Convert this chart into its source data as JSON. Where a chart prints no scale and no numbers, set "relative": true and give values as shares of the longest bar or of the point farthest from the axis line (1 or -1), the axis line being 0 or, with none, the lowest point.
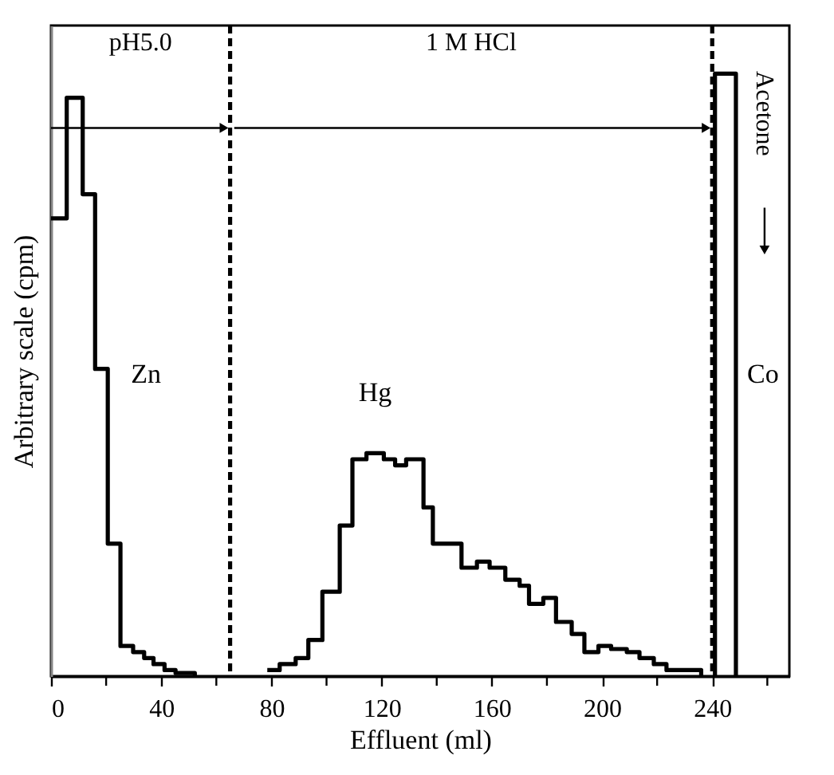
{
  "chart_data": {
    "type": "step",
    "relative": true,
    "xlabel": "Effluent (ml)",
    "ylabel": "Arbitrary scale (cpm)",
    "xlim": [
      0,
      268
    ],
    "xticks": [
      0,
      {
        "value": 20,
        "label": null
      },
      40,
      {
        "value": 60,
        "label": null
      },
      80,
      {
        "value": 100,
        "label": null
      },
      120,
      {
        "value": 140,
        "label": null
      },
      160,
      {
        "value": 180,
        "label": null
      },
      200,
      {
        "value": 220,
        "label": null
      },
      240,
      {
        "value": 260,
        "label": null
      }
    ],
    "series": [
      {
        "name": "Zn",
        "color": "#000000",
        "x": [
          0,
          5.7,
          11.5,
          16,
          20.6,
          25.2,
          29.8,
          33.8,
          37.2,
          41.2,
          45.2,
          52.2
        ],
        "values": [
          0.76,
          0.96,
          0.8,
          0.51,
          0.22,
          0.05,
          0.04,
          0.03,
          0.02,
          0.01,
          0.005,
          0
        ]
      },
      {
        "name": "Hg",
        "color": "#000000",
        "x": [
          78.5,
          83,
          88.8,
          93.4,
          98.5,
          104.8,
          109.4,
          114.5,
          120.8,
          124.9,
          128.9,
          135.2,
          138.6,
          149,
          154.6,
          159.2,
          164.9,
          170.1,
          173.5,
          178.7,
          183.3,
          189,
          193.6,
          198.7,
          203.3,
          209,
          213.6,
          218.8,
          223.4,
          228,
          236
        ],
        "values": [
          0.01,
          0.02,
          0.03,
          0.06,
          0.14,
          0.25,
          0.36,
          0.37,
          0.36,
          0.35,
          0.36,
          0.28,
          0.22,
          0.18,
          0.19,
          0.18,
          0.16,
          0.15,
          0.12,
          0.13,
          0.09,
          0.07,
          0.04,
          0.05,
          0.045,
          0.04,
          0.03,
          0.02,
          0.01,
          0.01,
          0
        ]
      },
      {
        "name": "Co",
        "color": "#000000",
        "x": [
          241,
          241,
          248.6
        ],
        "values": [
          0,
          1,
          0
        ]
      }
    ],
    "ref_lines": [
      {
        "axis": "x",
        "value": 65,
        "line_style": "dashed",
        "color": "#000000"
      },
      {
        "axis": "x",
        "value": 240,
        "line_style": "dashed",
        "color": "#000000"
      }
    ],
    "annotations": [
      "pH5.0",
      "1 M HCl",
      "Acetone"
    ],
    "grid": false,
    "legend": false,
    "line_style": "solid",
    "marker": "none"
  }
}
